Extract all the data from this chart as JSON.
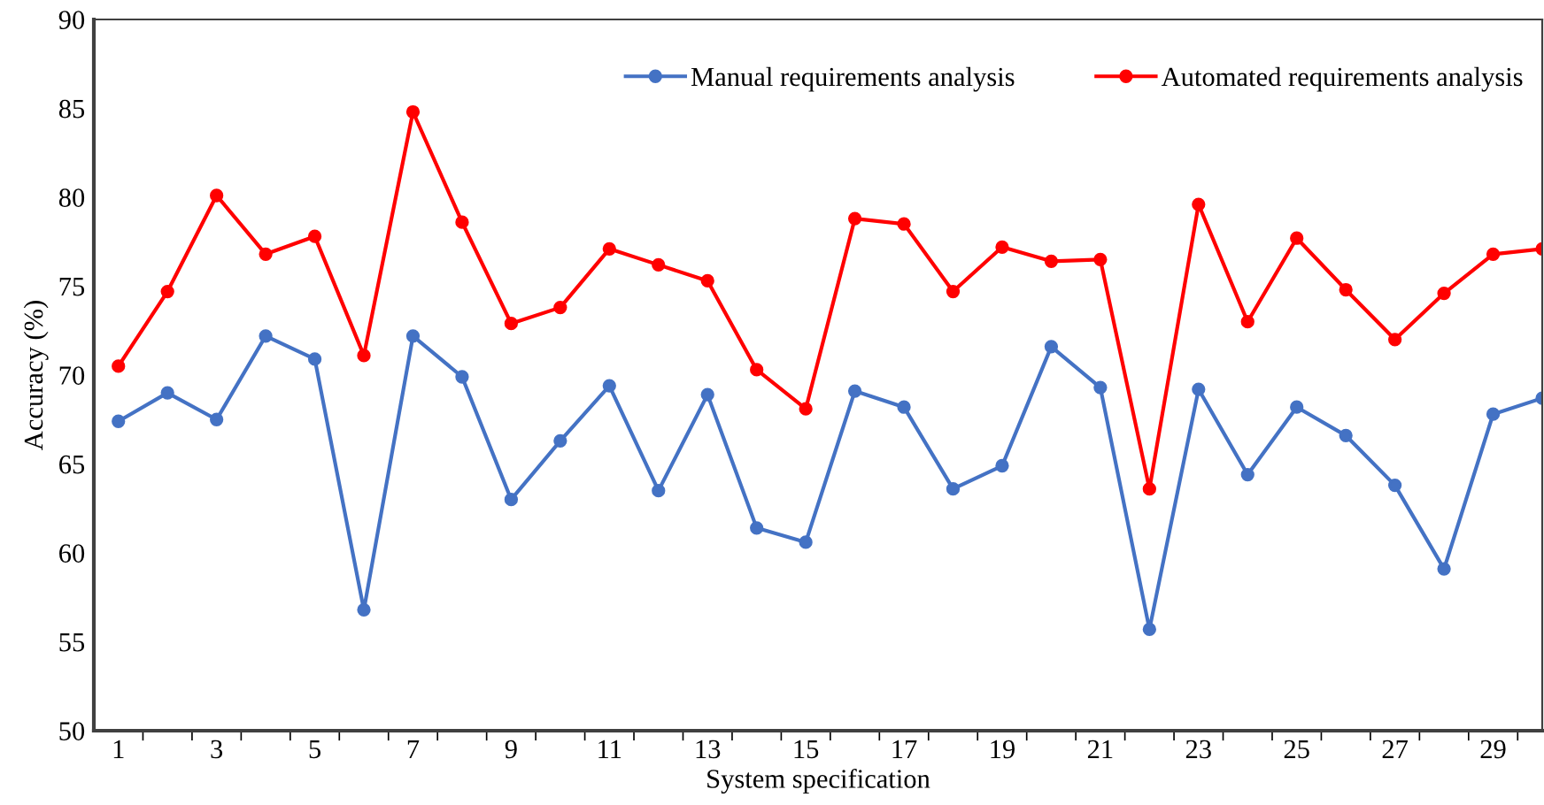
{
  "chart_data": {
    "type": "line",
    "xlabel": "System specification",
    "ylabel": "Accuracy (%)",
    "categories": [
      "1",
      null,
      "3",
      null,
      "5",
      null,
      "7",
      null,
      "9",
      null,
      "11",
      null,
      "13",
      null,
      "15",
      null,
      "17",
      null,
      "19",
      null,
      "21",
      null,
      "23",
      null,
      "25",
      null,
      "27",
      null,
      "29",
      null
    ],
    "series": [
      {
        "name": "Manual requirements analysis",
        "color": "#4472c4",
        "values": [
          67.4,
          69.0,
          67.5,
          72.2,
          70.9,
          56.8,
          72.2,
          69.9,
          63.0,
          66.3,
          69.4,
          63.5,
          68.9,
          61.4,
          60.6,
          69.1,
          68.2,
          63.6,
          64.9,
          71.6,
          69.3,
          55.7,
          69.2,
          64.4,
          68.2,
          66.6,
          63.8,
          59.1,
          67.8,
          68.7
        ]
      },
      {
        "name": "Automated requirements analysis",
        "color": "#ff0000",
        "values": [
          70.5,
          74.7,
          80.1,
          76.8,
          77.8,
          71.1,
          84.8,
          78.6,
          72.9,
          73.8,
          77.1,
          76.2,
          75.3,
          70.3,
          68.1,
          78.8,
          78.5,
          74.7,
          77.2,
          76.4,
          76.5,
          63.6,
          79.6,
          73.0,
          77.7,
          74.8,
          72.0,
          74.6,
          76.8,
          77.1
        ]
      }
    ],
    "ylim": [
      50,
      90
    ],
    "yticks": [
      50,
      55,
      60,
      65,
      70,
      75,
      80,
      85,
      90
    ],
    "grid": false,
    "legend": "top right",
    "marker": "circle",
    "line_style": "solid"
  }
}
